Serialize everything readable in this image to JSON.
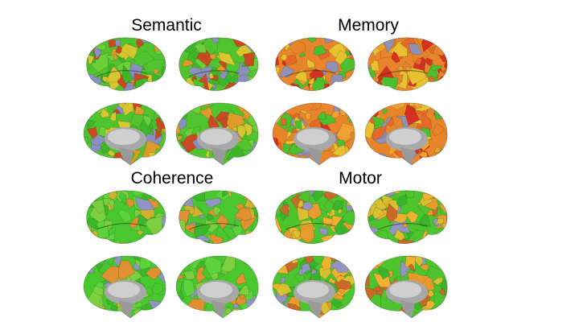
{
  "panels": [
    {
      "title": "Semantic"
    },
    {
      "title": "Memory"
    },
    {
      "title": "Coherence"
    },
    {
      "title": "Motor"
    }
  ]
}
